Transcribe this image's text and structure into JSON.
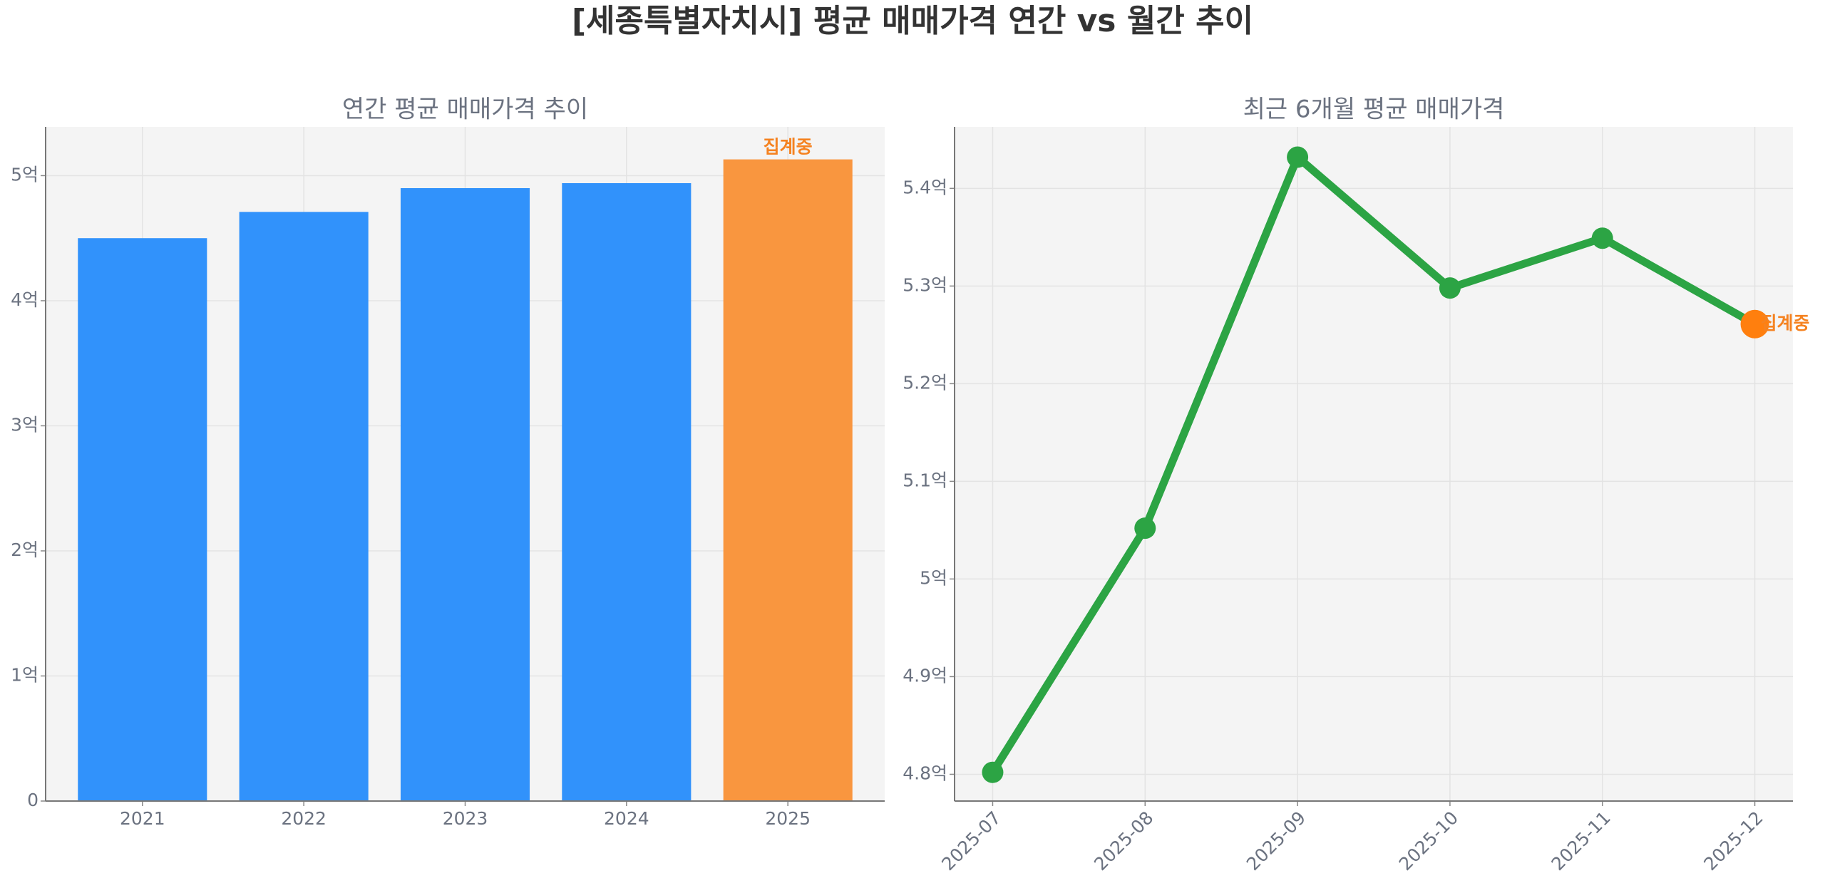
{
  "title": "[세종특별자치시] 평균 매매가격 연간 vs 월간 추이",
  "chart_data": [
    {
      "type": "bar",
      "title": "연간 평균 매매가격 추이",
      "categories": [
        "2021",
        "2022",
        "2023",
        "2024",
        "2025"
      ],
      "values": [
        4.5,
        4.71,
        4.9,
        4.94,
        5.13
      ],
      "colors": [
        "#3192fb",
        "#3192fb",
        "#3192fb",
        "#3192fb",
        "#f9963f"
      ],
      "annotation": {
        "text": "집계중",
        "at": "2025",
        "color": "#f58220"
      },
      "ylim": [
        0,
        5.39
      ],
      "yticks": [
        {
          "value": 0,
          "label": "0"
        },
        {
          "value": 1,
          "label": "1억"
        },
        {
          "value": 2,
          "label": "2억"
        },
        {
          "value": 3,
          "label": "3억"
        },
        {
          "value": 4,
          "label": "4억"
        },
        {
          "value": 5,
          "label": "5억"
        }
      ],
      "grid": true
    },
    {
      "type": "line",
      "title": "최근 6개월 평균 매매가격",
      "categories": [
        "2025-07",
        "2025-08",
        "2025-09",
        "2025-10",
        "2025-11",
        "2025-12"
      ],
      "series": [
        {
          "color": "#2ca444",
          "values": [
            4.802,
            5.052,
            5.432,
            5.298,
            5.349,
            5.261
          ]
        }
      ],
      "marker_colors": [
        "#2ca444",
        "#2ca444",
        "#2ca444",
        "#2ca444",
        "#2ca444",
        "#ff7f0e"
      ],
      "annotation": {
        "text": "집계중",
        "at": "2025-12",
        "color": "#f58220"
      },
      "ylim": [
        4.7726,
        5.463
      ],
      "yticks": [
        {
          "value": 4.8,
          "label": "4.8억"
        },
        {
          "value": 4.9,
          "label": "4.9억"
        },
        {
          "value": 5.0,
          "label": "5억"
        },
        {
          "value": 5.1,
          "label": "5.1억"
        },
        {
          "value": 5.2,
          "label": "5.2억"
        },
        {
          "value": 5.3,
          "label": "5.3억"
        },
        {
          "value": 5.4,
          "label": "5.4억"
        }
      ],
      "grid": true
    }
  ]
}
